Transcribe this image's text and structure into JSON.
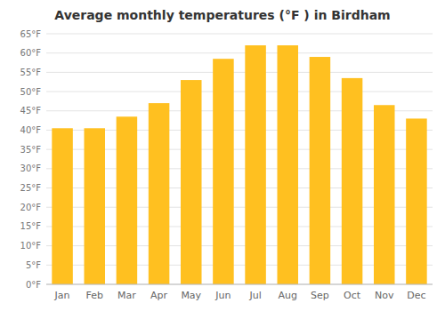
{
  "chart_data": {
    "type": "bar",
    "title": "Average monthly temperatures (°F ) in Birdham",
    "categories": [
      "Jan",
      "Feb",
      "Mar",
      "Apr",
      "May",
      "Jun",
      "Jul",
      "Aug",
      "Sep",
      "Oct",
      "Nov",
      "Dec"
    ],
    "values": [
      40.5,
      40.5,
      43.5,
      47,
      53,
      58.5,
      62,
      62,
      59,
      53.5,
      46.5,
      43
    ],
    "color": "#FFC020",
    "ylim": [
      0,
      65
    ],
    "yticks": [
      {
        "value": 0,
        "label": "0°F"
      },
      {
        "value": 5,
        "label": "5°F"
      },
      {
        "value": 10,
        "label": "10°F"
      },
      {
        "value": 15,
        "label": "15°F"
      },
      {
        "value": 20,
        "label": "20°F"
      },
      {
        "value": 25,
        "label": "25°F"
      },
      {
        "value": 30,
        "label": "30°F"
      },
      {
        "value": 35,
        "label": "35°F"
      },
      {
        "value": 40,
        "label": "40°F"
      },
      {
        "value": 45,
        "label": "45°F"
      },
      {
        "value": 50,
        "label": "50°F"
      },
      {
        "value": 55,
        "label": "55°F"
      },
      {
        "value": 60,
        "label": "60°F"
      },
      {
        "value": 65,
        "label": "65°F"
      }
    ],
    "grid": true
  }
}
